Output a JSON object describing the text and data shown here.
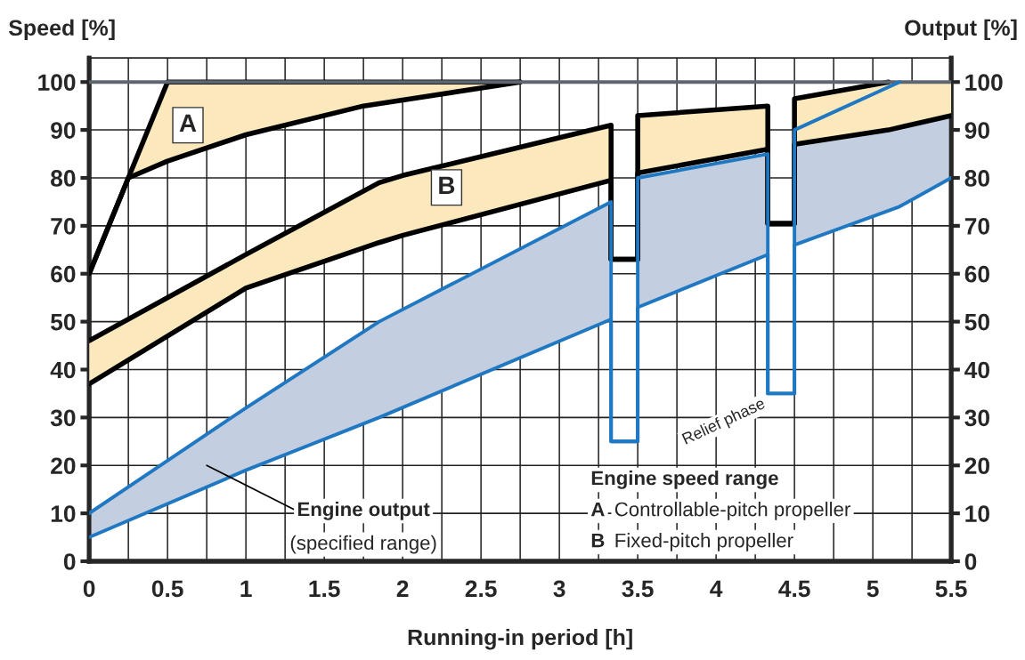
{
  "chart_data": {
    "type": "line",
    "xlabel": "Running-in period [h]",
    "ylabel": "Speed [%]",
    "y2label": "Output [%]",
    "xlim": [
      0,
      5.5
    ],
    "ylim": [
      0,
      105
    ],
    "y2lim": [
      0,
      105
    ],
    "xticks": [
      0,
      {
        "value": 0.25,
        "label": null
      },
      0.5,
      {
        "value": 0.75,
        "label": null
      },
      1,
      {
        "value": 1.25,
        "label": null
      },
      1.5,
      {
        "value": 1.75,
        "label": null
      },
      2,
      {
        "value": 2.25,
        "label": null
      },
      2.5,
      {
        "value": 2.75,
        "label": null
      },
      3,
      {
        "value": 3.25,
        "label": null
      },
      3.5,
      {
        "value": 3.75,
        "label": null
      },
      4,
      {
        "value": 4.25,
        "label": null
      },
      4.5,
      {
        "value": 4.75,
        "label": null
      },
      5,
      {
        "value": 5.25,
        "label": null
      },
      5.5
    ],
    "yticks": [
      0,
      10,
      20,
      30,
      40,
      50,
      60,
      70,
      80,
      90,
      100
    ],
    "y2ticks": [
      0,
      10,
      20,
      30,
      40,
      50,
      60,
      70,
      80,
      90,
      100
    ],
    "grid": true,
    "ref_lines": [
      {
        "axis": "y",
        "value": 100,
        "label": null,
        "color": "#5d6670"
      }
    ],
    "series": [
      {
        "color": "#fbe9bd",
        "x": [
          0,
          0.25,
          0.5,
          1,
          1.75,
          2.75
        ],
        "values": [
          null,
          null,
          null,
          null,
          null,
          null
        ],
        "lower": [
          60,
          80,
          83.5,
          89,
          95,
          100
        ],
        "upper": [
          60,
          80,
          100,
          100,
          100,
          100
        ]
      },
      {
        "color": "#000000",
        "x": [
          0,
          0.25,
          0.5,
          1,
          1.75,
          2.75
        ],
        "values": [
          60,
          80,
          100,
          100,
          100,
          100
        ]
      },
      {
        "color": "#000000",
        "x": [
          0,
          0.25,
          0.5,
          1,
          1.75,
          2.75
        ],
        "values": [
          60,
          80,
          83.5,
          89,
          95,
          100
        ]
      },
      {
        "color": "#fbe9bd",
        "x": [
          0,
          1,
          1.85,
          2,
          3.33,
          3.33,
          3.5,
          3.5,
          4.33,
          4.33,
          4.5,
          4.5,
          5.1,
          5.5
        ],
        "values": [
          null,
          null,
          null,
          null,
          null,
          null,
          null,
          null,
          null,
          null,
          null,
          null,
          null,
          null
        ],
        "lower": [
          37,
          57,
          66.5,
          68,
          79.5,
          63,
          63,
          81,
          86,
          70.5,
          70.5,
          87,
          90,
          93
        ],
        "upper": [
          46,
          64,
          79,
          80.5,
          91,
          63,
          63,
          93,
          95,
          70.5,
          70.5,
          96.5,
          100,
          100
        ]
      },
      {
        "color": "#000000",
        "x": [
          0,
          1,
          1.85,
          2,
          3.33,
          3.33,
          3.5,
          3.5,
          4.33,
          4.33,
          4.5,
          4.5,
          5.1
        ],
        "values": [
          46,
          64,
          79,
          80.5,
          91,
          63,
          63,
          93,
          95,
          70.5,
          70.5,
          96.5,
          100
        ]
      },
      {
        "color": "#000000",
        "x": [
          0,
          1,
          1.85,
          2,
          3.33,
          3.33,
          3.5,
          3.5,
          4.33,
          4.33,
          4.5,
          4.5,
          5.1,
          5.5
        ],
        "values": [
          37,
          57,
          66.5,
          68,
          79.5,
          63,
          63,
          81,
          86,
          70.5,
          70.5,
          87,
          90,
          93
        ]
      },
      {
        "axis": "y2",
        "color": "#c3cfe0",
        "x": [
          0,
          1,
          1.85,
          3.33,
          3.33,
          3.5,
          3.5,
          4.33,
          4.33,
          4.5,
          4.5,
          5.17,
          5.5
        ],
        "values": [
          null,
          null,
          null,
          null,
          null,
          null,
          null,
          null,
          null,
          null,
          null,
          null,
          null
        ],
        "lower": [
          5,
          19,
          30,
          50.5,
          25,
          25,
          53,
          64,
          35,
          35,
          66,
          74,
          80
        ],
        "upper": [
          10,
          32,
          50,
          75,
          25,
          25,
          80,
          85,
          35,
          35,
          90,
          100,
          100
        ]
      },
      {
        "axis": "y2",
        "color": "#1f78c1",
        "x": [
          0,
          1,
          1.85,
          3.33,
          3.33,
          3.5,
          3.5,
          4.33,
          4.33,
          4.5,
          4.5,
          5.17
        ],
        "values": [
          10,
          32,
          50,
          75,
          25,
          25,
          80,
          85,
          35,
          35,
          90,
          100
        ]
      },
      {
        "axis": "y2",
        "color": "#1f78c1",
        "x": [
          0,
          1,
          1.85,
          3.33,
          3.33,
          3.5,
          3.5,
          4.33,
          4.33,
          4.5,
          4.5,
          5.17,
          5.5
        ],
        "values": [
          5,
          19,
          30,
          50.5,
          25,
          25,
          53,
          64,
          35,
          35,
          66,
          74,
          80
        ]
      }
    ],
    "annotations": [
      "A",
      "B",
      "Engine output",
      "(specified range)",
      "Relief phase",
      "Engine speed range",
      "Controllable-pitch propeller",
      "Fixed-pitch propeller"
    ]
  }
}
